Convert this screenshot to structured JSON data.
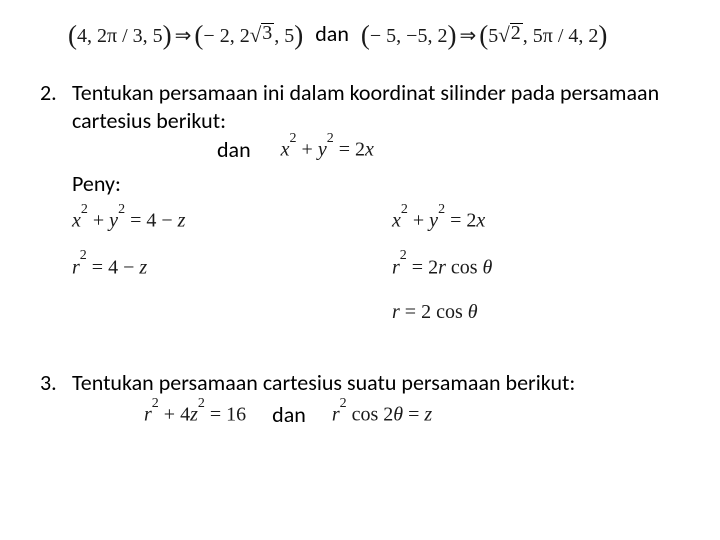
{
  "top": {
    "left_tuple": "4, 2π / 3, 5",
    "left_result_pre": "− 2, 2",
    "left_result_sqrt": "3",
    "left_result_post": ", 5",
    "dan": "dan",
    "right_tuple": "− 5, −5, 2",
    "right_result_pre": "5",
    "right_result_sqrt": "2",
    "right_result_mid": ", 5π / 4, 2"
  },
  "item2": {
    "num": "2.",
    "text": "Tentukan persamaan ini dalam koordinat silinder pada persamaan cartesius berikut:",
    "dan": "dan",
    "eq_right": {
      "lhs": "x² + y²",
      "rhs": "2x"
    },
    "peny": "Peny:",
    "grid": {
      "l1": {
        "lhs": "x² + y²",
        "rhs": "4 − z"
      },
      "l2": {
        "lhs": "r²",
        "rhs": "4 − z"
      },
      "r1": {
        "lhs": "x² + y²",
        "rhs": "2x"
      },
      "r2": {
        "lhs": "r²",
        "rhs": "2r cos θ"
      },
      "r3": {
        "lhs": "r",
        "rhs": "2 cos θ"
      }
    }
  },
  "item3": {
    "num": "3.",
    "text": "Tentukan persamaan cartesius suatu persamaan berikut:",
    "dan": "dan",
    "eq_left": {
      "lhs": "r² + 4z²",
      "rhs": "16"
    },
    "eq_right": {
      "lhs": "r² cos 2θ",
      "rhs": "z"
    }
  },
  "style": {
    "body_fontsize": 22,
    "math_fontsize": 20,
    "text_color": "#000000",
    "math_color": "#1a1a1a",
    "background": "#ffffff"
  }
}
